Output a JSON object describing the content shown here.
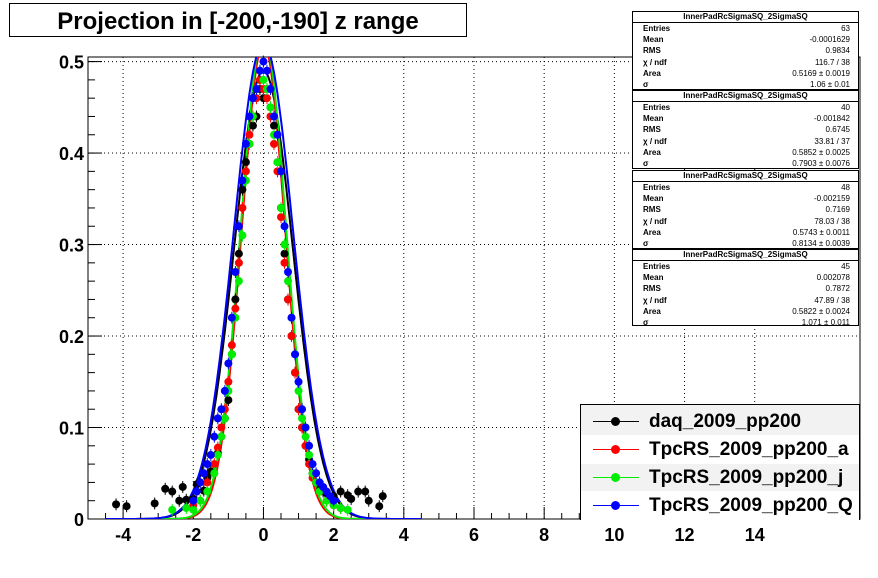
{
  "title": "Projection in [-200,-190] z range",
  "chart_data": {
    "type": "scatter",
    "xlim": [
      -5,
      17
    ],
    "ylim": [
      0,
      0.505
    ],
    "x_ticks": [
      -4,
      -2,
      0,
      2,
      4,
      6,
      8,
      10,
      12,
      14
    ],
    "y_ticks": [
      0,
      0.1,
      0.2,
      0.3,
      0.4,
      0.5
    ],
    "x_tick_labels": [
      "-4",
      "-2",
      "0",
      "2",
      "4",
      "6",
      "8",
      "10",
      "12",
      "14"
    ],
    "y_tick_labels": [
      "0",
      "0.1",
      "0.2",
      "0.3",
      "0.4",
      "0.5"
    ],
    "grid": true,
    "legend_position": "bottom-right",
    "series": [
      {
        "name": "daq_2009_pp200",
        "color": "#000000",
        "fit_sigma": 1.06,
        "fit_peak": 0.49,
        "points": [
          [
            -4.2,
            0.016
          ],
          [
            -3.9,
            0.014
          ],
          [
            -3.1,
            0.017
          ],
          [
            -2.8,
            0.033
          ],
          [
            -2.6,
            0.03
          ],
          [
            -2.4,
            0.02
          ],
          [
            -2.3,
            0.035
          ],
          [
            -2.2,
            0.021
          ],
          [
            -2.0,
            0.022
          ],
          [
            -1.9,
            0.038
          ],
          [
            -1.7,
            0.031
          ],
          [
            -1.6,
            0.045
          ],
          [
            -1.5,
            0.052
          ],
          [
            -1.3,
            0.072
          ],
          [
            -1.2,
            0.09
          ],
          [
            -1.1,
            0.11
          ],
          [
            -1.0,
            0.13
          ],
          [
            -0.9,
            0.18
          ],
          [
            -0.8,
            0.24
          ],
          [
            -0.7,
            0.29
          ],
          [
            -0.6,
            0.36
          ],
          [
            -0.5,
            0.39
          ],
          [
            -0.4,
            0.41
          ],
          [
            -0.3,
            0.43
          ],
          [
            -0.2,
            0.44
          ],
          [
            -0.1,
            0.47
          ],
          [
            0.0,
            0.46
          ],
          [
            0.1,
            0.47
          ],
          [
            0.2,
            0.45
          ],
          [
            0.3,
            0.43
          ],
          [
            0.4,
            0.39
          ],
          [
            0.5,
            0.34
          ],
          [
            0.6,
            0.29
          ],
          [
            0.7,
            0.24
          ],
          [
            0.8,
            0.2
          ],
          [
            0.9,
            0.16
          ],
          [
            1.0,
            0.12
          ],
          [
            1.1,
            0.1
          ],
          [
            1.2,
            0.08
          ],
          [
            1.3,
            0.065
          ],
          [
            1.4,
            0.05
          ],
          [
            1.5,
            0.04
          ],
          [
            1.6,
            0.035
          ],
          [
            1.7,
            0.03
          ],
          [
            1.8,
            0.028
          ],
          [
            2.0,
            0.025
          ],
          [
            2.2,
            0.03
          ],
          [
            2.4,
            0.026
          ],
          [
            2.5,
            0.022
          ],
          [
            2.7,
            0.03
          ],
          [
            2.9,
            0.03
          ],
          [
            3.0,
            0.02
          ],
          [
            3.3,
            0.014
          ],
          [
            3.4,
            0.025
          ]
        ]
      },
      {
        "name": "TpcRS_2009_pp200_a",
        "color": "#ff0000",
        "fit_sigma": 0.7903,
        "fit_peak": 0.52,
        "points": [
          [
            -2.0,
            0.015
          ],
          [
            -1.8,
            0.02
          ],
          [
            -1.6,
            0.04
          ],
          [
            -1.4,
            0.06
          ],
          [
            -1.3,
            0.078
          ],
          [
            -1.2,
            0.1
          ],
          [
            -1.1,
            0.12
          ],
          [
            -1.0,
            0.15
          ],
          [
            -0.9,
            0.19
          ],
          [
            -0.8,
            0.23
          ],
          [
            -0.7,
            0.28
          ],
          [
            -0.6,
            0.34
          ],
          [
            -0.5,
            0.38
          ],
          [
            -0.4,
            0.42
          ],
          [
            -0.3,
            0.44
          ],
          [
            -0.2,
            0.46
          ],
          [
            -0.1,
            0.48
          ],
          [
            0.0,
            0.47
          ],
          [
            0.1,
            0.46
          ],
          [
            0.2,
            0.44
          ],
          [
            0.3,
            0.41
          ],
          [
            0.4,
            0.38
          ],
          [
            0.5,
            0.33
          ],
          [
            0.6,
            0.28
          ],
          [
            0.7,
            0.24
          ],
          [
            0.8,
            0.2
          ],
          [
            0.9,
            0.16
          ],
          [
            1.0,
            0.12
          ],
          [
            1.1,
            0.1
          ],
          [
            1.2,
            0.08
          ],
          [
            1.3,
            0.06
          ],
          [
            1.4,
            0.045
          ],
          [
            1.6,
            0.03
          ],
          [
            1.8,
            0.02
          ],
          [
            2.0,
            0.015
          ],
          [
            2.2,
            0.012
          ]
        ]
      },
      {
        "name": "TpcRS_2009_pp200_j",
        "color": "#00ee00",
        "fit_sigma": 0.8134,
        "fit_peak": 0.53,
        "points": [
          [
            -2.6,
            0.01
          ],
          [
            -2.2,
            0.012
          ],
          [
            -2.0,
            0.01
          ],
          [
            -1.8,
            0.02
          ],
          [
            -1.6,
            0.03
          ],
          [
            -1.4,
            0.05
          ],
          [
            -1.3,
            0.07
          ],
          [
            -1.2,
            0.09
          ],
          [
            -1.1,
            0.11
          ],
          [
            -1.0,
            0.14
          ],
          [
            -0.9,
            0.18
          ],
          [
            -0.8,
            0.22
          ],
          [
            -0.7,
            0.26
          ],
          [
            -0.6,
            0.31
          ],
          [
            -0.5,
            0.37
          ],
          [
            -0.4,
            0.41
          ],
          [
            -0.3,
            0.44
          ],
          [
            -0.2,
            0.47
          ],
          [
            -0.1,
            0.49
          ],
          [
            0.0,
            0.48
          ],
          [
            0.1,
            0.47
          ],
          [
            0.2,
            0.45
          ],
          [
            0.3,
            0.42
          ],
          [
            0.4,
            0.39
          ],
          [
            0.5,
            0.34
          ],
          [
            0.6,
            0.3
          ],
          [
            0.7,
            0.26
          ],
          [
            0.8,
            0.22
          ],
          [
            0.9,
            0.18
          ],
          [
            1.0,
            0.14
          ],
          [
            1.1,
            0.11
          ],
          [
            1.2,
            0.09
          ],
          [
            1.3,
            0.07
          ],
          [
            1.4,
            0.05
          ],
          [
            1.5,
            0.04
          ],
          [
            1.6,
            0.03
          ],
          [
            1.8,
            0.02
          ],
          [
            2.0,
            0.015
          ],
          [
            2.2,
            0.012
          ],
          [
            2.4,
            0.01
          ]
        ]
      },
      {
        "name": "TpcRS_2009_pp200_Q",
        "color": "#0000ff",
        "fit_sigma": 1.071,
        "fit_peak": 0.52,
        "points": [
          [
            -2.0,
            0.02
          ],
          [
            -1.9,
            0.03
          ],
          [
            -1.8,
            0.04
          ],
          [
            -1.7,
            0.05
          ],
          [
            -1.6,
            0.06
          ],
          [
            -1.5,
            0.07
          ],
          [
            -1.4,
            0.09
          ],
          [
            -1.3,
            0.11
          ],
          [
            -1.2,
            0.12
          ],
          [
            -1.1,
            0.14
          ],
          [
            -1.0,
            0.17
          ],
          [
            -0.9,
            0.22
          ],
          [
            -0.8,
            0.27
          ],
          [
            -0.7,
            0.32
          ],
          [
            -0.6,
            0.37
          ],
          [
            -0.5,
            0.41
          ],
          [
            -0.4,
            0.44
          ],
          [
            -0.3,
            0.46
          ],
          [
            -0.2,
            0.47
          ],
          [
            -0.1,
            0.49
          ],
          [
            0.0,
            0.5
          ],
          [
            0.1,
            0.49
          ],
          [
            0.2,
            0.47
          ],
          [
            0.3,
            0.44
          ],
          [
            0.4,
            0.42
          ],
          [
            0.5,
            0.38
          ],
          [
            0.6,
            0.32
          ],
          [
            0.7,
            0.27
          ],
          [
            0.8,
            0.22
          ],
          [
            0.9,
            0.18
          ],
          [
            1.0,
            0.15
          ],
          [
            1.1,
            0.12
          ],
          [
            1.2,
            0.1
          ],
          [
            1.3,
            0.08
          ],
          [
            1.4,
            0.06
          ],
          [
            1.5,
            0.05
          ],
          [
            1.6,
            0.04
          ],
          [
            1.7,
            0.035
          ],
          [
            1.8,
            0.03
          ],
          [
            1.9,
            0.025
          ],
          [
            2.0,
            0.02
          ]
        ]
      }
    ]
  },
  "stats_boxes": [
    {
      "header": "InnerPadRcSigmaSQ_2SigmaSQ",
      "rows": [
        {
          "k": "Entries",
          "v": "63"
        },
        {
          "k": "Mean",
          "v": "-0.0001629"
        },
        {
          "k": "RMS",
          "v": "0.9834"
        },
        {
          "k": "χ  / ndf",
          "v": "116.7 / 38"
        },
        {
          "k": "Area",
          "v": "0.5169 ± 0.0019"
        },
        {
          "k": "σ",
          "v": "1.06 ± 0.01"
        }
      ]
    },
    {
      "header": "InnerPadRcSigmaSQ_2SigmaSQ",
      "rows": [
        {
          "k": "Entries",
          "v": "40"
        },
        {
          "k": "Mean",
          "v": "-0.001842"
        },
        {
          "k": "RMS",
          "v": "0.6745"
        },
        {
          "k": "χ  / ndf",
          "v": "33.81 / 37"
        },
        {
          "k": "Area",
          "v": "0.5852 ± 0.0025"
        },
        {
          "k": "σ",
          "v": "0.7903 ± 0.0076"
        }
      ]
    },
    {
      "header": "InnerPadRcSigmaSQ_2SigmaSQ",
      "rows": [
        {
          "k": "Entries",
          "v": "48"
        },
        {
          "k": "Mean",
          "v": "-0.002159"
        },
        {
          "k": "RMS",
          "v": "0.7169"
        },
        {
          "k": "χ  / ndf",
          "v": "78.03 / 38"
        },
        {
          "k": "Area",
          "v": "0.5743 ± 0.0011"
        },
        {
          "k": "σ",
          "v": "0.8134 ± 0.0039"
        }
      ]
    },
    {
      "header": "InnerPadRcSigmaSQ_2SigmaSQ",
      "rows": [
        {
          "k": "Entries",
          "v": "45"
        },
        {
          "k": "Mean",
          "v": "0.002078"
        },
        {
          "k": "RMS",
          "v": "0.7872"
        },
        {
          "k": "χ  / ndf",
          "v": "47.89 / 38"
        },
        {
          "k": "Area",
          "v": "0.5822 ± 0.0024"
        },
        {
          "k": "σ",
          "v": "1.071 ± 0.011"
        }
      ]
    }
  ]
}
